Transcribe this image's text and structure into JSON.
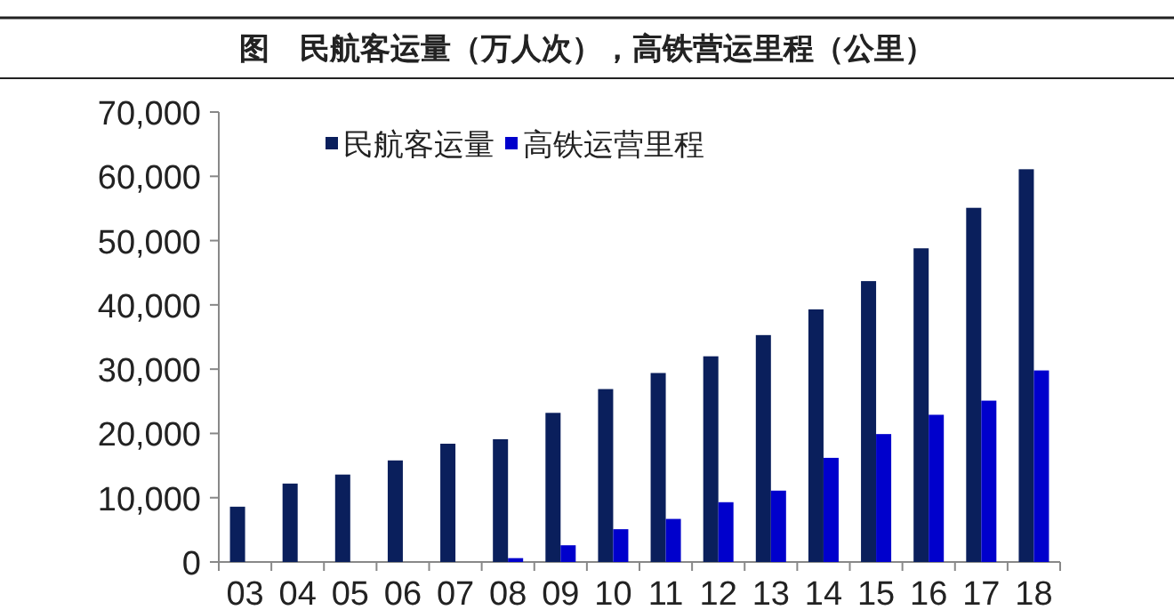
{
  "chart_data": {
    "type": "bar",
    "title": "图　民航客运量（万人次），高铁营运里程（公里）",
    "categories": [
      "03",
      "04",
      "05",
      "06",
      "07",
      "08",
      "09",
      "10",
      "11",
      "12",
      "13",
      "14",
      "15",
      "16",
      "17",
      "18"
    ],
    "series": [
      {
        "name": "民航客运量",
        "color": "#0a1f5c",
        "values": [
          8600,
          12200,
          13600,
          15800,
          18400,
          19100,
          23200,
          26900,
          29400,
          32000,
          35300,
          39300,
          43700,
          48800,
          55100,
          61100
        ]
      },
      {
        "name": "高铁运营里程",
        "color": "#0000cc",
        "values": [
          null,
          null,
          null,
          null,
          null,
          600,
          2600,
          5100,
          6700,
          9300,
          11100,
          16200,
          19900,
          22900,
          25100,
          29800
        ]
      }
    ],
    "ylim": [
      0,
      70000
    ],
    "yticks": [
      {
        "value": 0,
        "label": "0"
      },
      {
        "value": 10000,
        "label": "10,000"
      },
      {
        "value": 20000,
        "label": "20,000"
      },
      {
        "value": 30000,
        "label": "30,000"
      },
      {
        "value": 40000,
        "label": "40,000"
      },
      {
        "value": 50000,
        "label": "50,000"
      },
      {
        "value": 60000,
        "label": "60,000"
      },
      {
        "value": 70000,
        "label": "70,000"
      }
    ],
    "legend": "top",
    "grid": false
  }
}
